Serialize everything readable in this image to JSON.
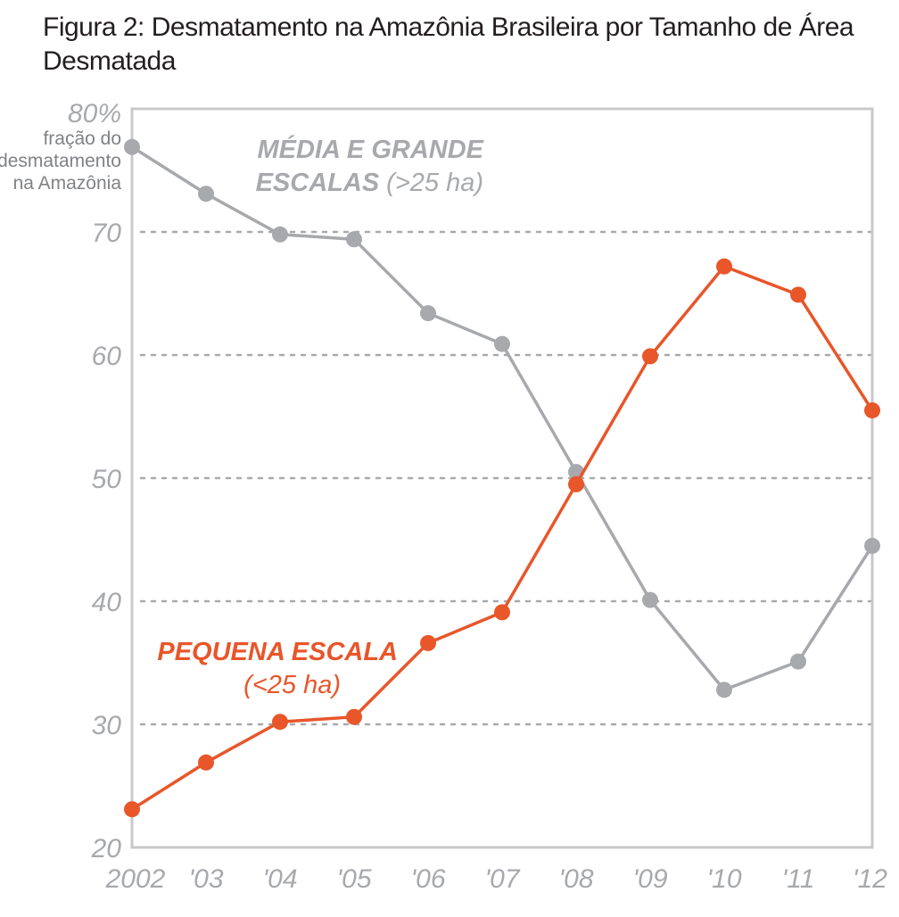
{
  "title": "Figura 2: Desmatamento na Amazônia Brasileira por Tamanho de Área Desmatada",
  "chart_data": {
    "type": "line",
    "x": [
      "2002",
      "'03",
      "'04",
      "'05",
      "'06",
      "'07",
      "'08",
      "'09",
      "'10",
      "'11",
      "'12"
    ],
    "ylim": [
      20,
      80
    ],
    "yticks": [
      20,
      30,
      40,
      50,
      60,
      70
    ],
    "ytick_top": "80%",
    "ylabel_lines": [
      "fração do",
      "desmatamento",
      "na Amazônia"
    ],
    "grid": true,
    "series": [
      {
        "name_line1": "MÉDIA E GRANDE",
        "name_line2_bold": "ESCALAS",
        "name_line2_paren": "(>25 ha)",
        "color": "#a7a9ac",
        "values": [
          76.9,
          73.1,
          69.8,
          69.4,
          63.4,
          60.9,
          50.5,
          40.1,
          32.8,
          35.1,
          44.5
        ]
      },
      {
        "name_line1": "PEQUENA ESCALA",
        "name_line2_paren": "(<25 ha)",
        "color": "#e8562a",
        "values": [
          23.1,
          26.9,
          30.2,
          30.6,
          36.6,
          39.1,
          49.5,
          59.9,
          67.2,
          64.9,
          55.5
        ]
      }
    ]
  }
}
